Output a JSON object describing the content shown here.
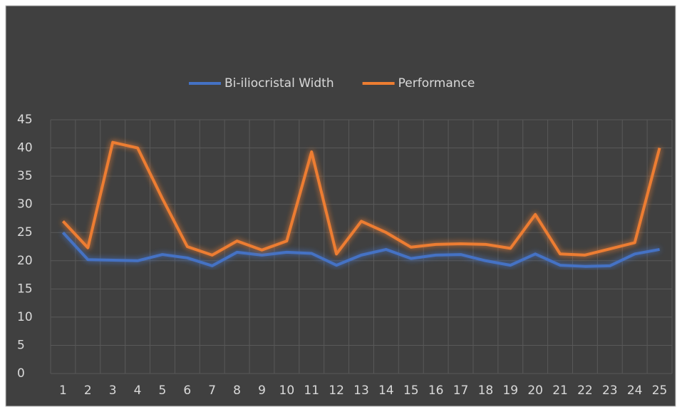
{
  "chart_data": {
    "type": "line",
    "categories": [
      "1",
      "2",
      "3",
      "4",
      "5",
      "6",
      "7",
      "8",
      "9",
      "10",
      "11",
      "12",
      "13",
      "14",
      "15",
      "16",
      "17",
      "18",
      "19",
      "20",
      "21",
      "22",
      "23",
      "24",
      "25"
    ],
    "series": [
      {
        "name": "Bi-iliocristal Width",
        "color": "#4472c4",
        "values": [
          25,
          20.2,
          20.1,
          20,
          21.1,
          20.5,
          19.1,
          21.5,
          21,
          21.5,
          21.3,
          19.2,
          21,
          22,
          20.4,
          21,
          21.1,
          20,
          19.2,
          21.2,
          19.2,
          19,
          19.1,
          21.2,
          22
        ]
      },
      {
        "name": "Performance",
        "color": "#ed7d31",
        "values": [
          27,
          22.3,
          41,
          40,
          31,
          22.5,
          21,
          23.5,
          21.9,
          23.5,
          39.3,
          21.2,
          27,
          25,
          22.4,
          22.9,
          23,
          22.9,
          22.2,
          28.2,
          21.2,
          21,
          22.1,
          23.2,
          40
        ]
      }
    ],
    "ylim": [
      0,
      45
    ],
    "yticks": [
      0,
      5,
      10,
      15,
      20,
      25,
      30,
      35,
      40,
      45
    ],
    "grid": true,
    "legend": "top"
  }
}
